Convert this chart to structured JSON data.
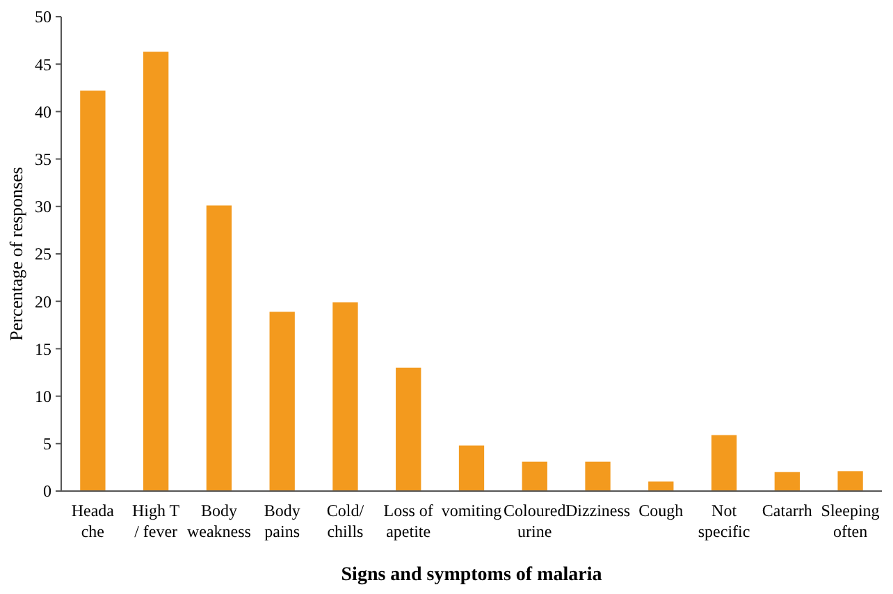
{
  "chart_data": {
    "type": "bar",
    "xlabel": "Signs and symptoms of malaria",
    "ylabel": "Percentage of responses",
    "categories": [
      "Heada\nche",
      "High T\n/ fever",
      "Body\nweakness",
      "Body\npains",
      "Cold/\nchills",
      "Loss of\napetite",
      "vomiting",
      "Coloured\nurine",
      "Dizziness",
      "Cough",
      "Not\nspecific",
      "Catarrh",
      "Sleeping\noften"
    ],
    "values": [
      42.2,
      46.3,
      30.1,
      18.9,
      19.9,
      13,
      4.8,
      3.1,
      3.1,
      1,
      5.9,
      2,
      2.1
    ],
    "color": "#f39a1e",
    "ylim": [
      0,
      50
    ],
    "yticks": [
      0,
      5,
      10,
      15,
      20,
      25,
      30,
      35,
      40,
      45,
      50
    ],
    "grid": false
  }
}
